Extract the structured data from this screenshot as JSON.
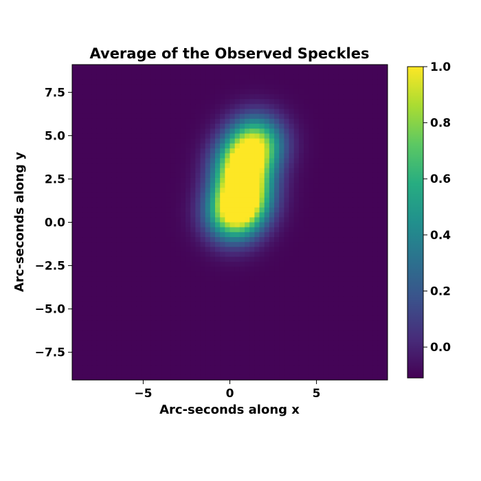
{
  "chart_data": {
    "type": "heatmap",
    "title": "Average of the Observed Speckles",
    "xlabel": "Arc-seconds along x",
    "ylabel": "Arc-seconds along y",
    "xlim": [
      -9.1,
      9.1
    ],
    "ylim": [
      -9.1,
      9.1
    ],
    "x_ticks": [
      -5,
      0,
      5
    ],
    "x_tick_labels": [
      "−5",
      "0",
      "5"
    ],
    "y_ticks": [
      -7.5,
      -5.0,
      -2.5,
      0.0,
      2.5,
      5.0,
      7.5
    ],
    "y_tick_labels": [
      "−7.5",
      "−5.0",
      "−2.5",
      "0.0",
      "2.5",
      "5.0",
      "7.5"
    ],
    "colormap": "viridis",
    "colorbar": {
      "range": [
        -0.11,
        1.0
      ],
      "ticks": [
        0.0,
        0.2,
        0.4,
        0.6,
        0.8,
        1.0
      ],
      "tick_labels": [
        "0.0",
        "0.2",
        "0.4",
        "0.6",
        "0.8",
        "1.0"
      ]
    },
    "grid": false,
    "resolution": 64,
    "background_level": -0.1,
    "components": [
      {
        "x": 0.2,
        "y": 0.4,
        "amplitude": 0.85,
        "sigma": 1.1
      },
      {
        "x": 0.8,
        "y": 1.5,
        "amplitude": 0.95,
        "sigma": 1.1
      },
      {
        "x": 0.7,
        "y": 3.2,
        "amplitude": 0.95,
        "sigma": 1.1
      },
      {
        "x": 1.5,
        "y": 4.6,
        "amplitude": 0.85,
        "sigma": 1.1
      }
    ]
  }
}
